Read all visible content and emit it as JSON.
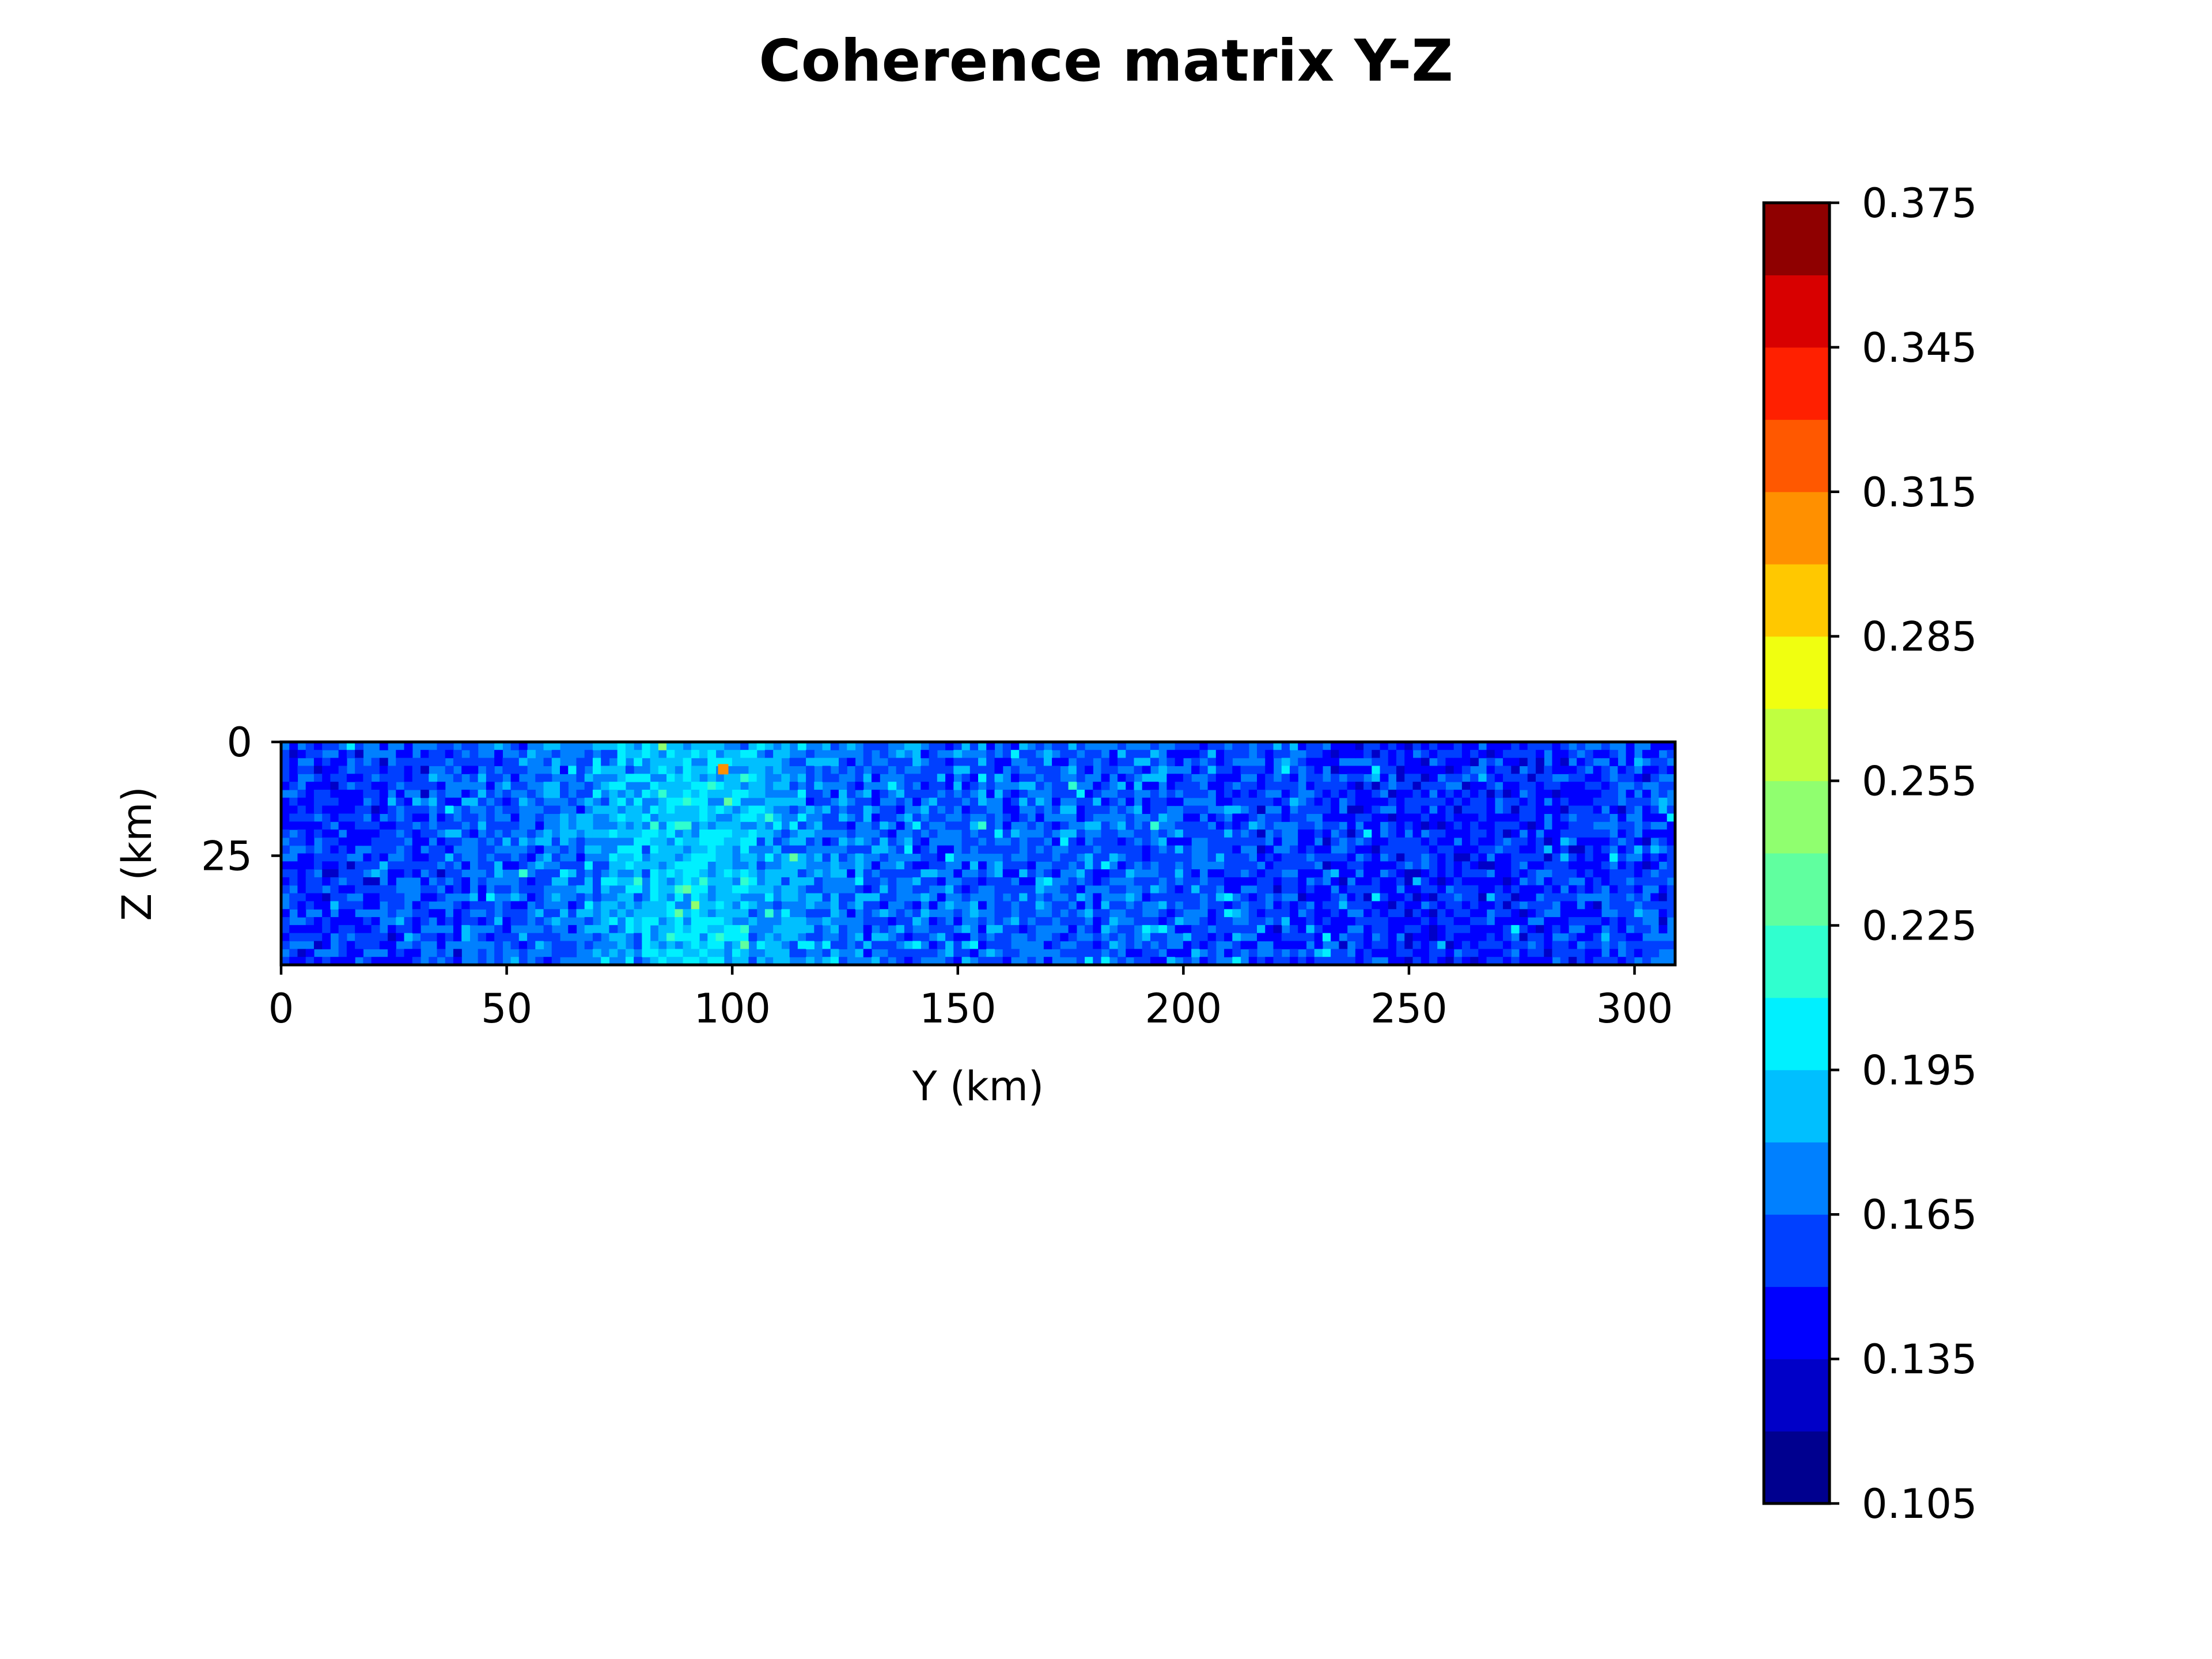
{
  "chart_data": [
    {
      "type": "heatmap",
      "title": "Coherence matrix Y-Z",
      "xlabel": "Y (km)",
      "ylabel": "Z (km)",
      "xlim": [
        0,
        309
      ],
      "ylim": [
        49,
        0
      ],
      "y_axis_inverted": true,
      "x_ticks": [
        0,
        50,
        100,
        150,
        200,
        250,
        300
      ],
      "y_ticks": [
        0,
        25
      ],
      "grid": false,
      "colormap": "jet",
      "colorbar": {
        "range": [
          0.105,
          0.375
        ],
        "levels": [
          0.105,
          0.12,
          0.135,
          0.15,
          0.165,
          0.18,
          0.195,
          0.21,
          0.225,
          0.24,
          0.255,
          0.27,
          0.285,
          0.3,
          0.315,
          0.33,
          0.345,
          0.36,
          0.375
        ],
        "tick_values": [
          0.105,
          0.135,
          0.165,
          0.195,
          0.225,
          0.255,
          0.285,
          0.315,
          0.345,
          0.375
        ],
        "tick_labels": [
          "0.105",
          "0.135",
          "0.165",
          "0.195",
          "0.225",
          "0.255",
          "0.285",
          "0.315",
          "0.345",
          "0.375"
        ],
        "band_colors": [
          "#00008f",
          "#0000c8",
          "#0000ff",
          "#0040ff",
          "#0080ff",
          "#00bfff",
          "#00f0ff",
          "#30ffcf",
          "#60ff9f",
          "#90ff6f",
          "#c0ff40",
          "#f0ff10",
          "#ffc800",
          "#ff9000",
          "#ff5800",
          "#ff2000",
          "#d80000",
          "#8f0000"
        ]
      },
      "background_level": 0.165,
      "regions": [
        {
          "y_range": [
            0,
            40
          ],
          "z_range": [
            0,
            49
          ],
          "typical_value": 0.15,
          "description": "mixed lower values"
        },
        {
          "y_range": [
            65,
            115
          ],
          "z_range": [
            0,
            49
          ],
          "typical_value": 0.19,
          "description": "higher coherence streaks"
        },
        {
          "y_range": [
            220,
            300
          ],
          "z_range": [
            0,
            49
          ],
          "typical_value": 0.145,
          "description": "lower coherence patches"
        }
      ],
      "peak": {
        "y": 98,
        "z": 6,
        "value": 0.3
      }
    }
  ]
}
